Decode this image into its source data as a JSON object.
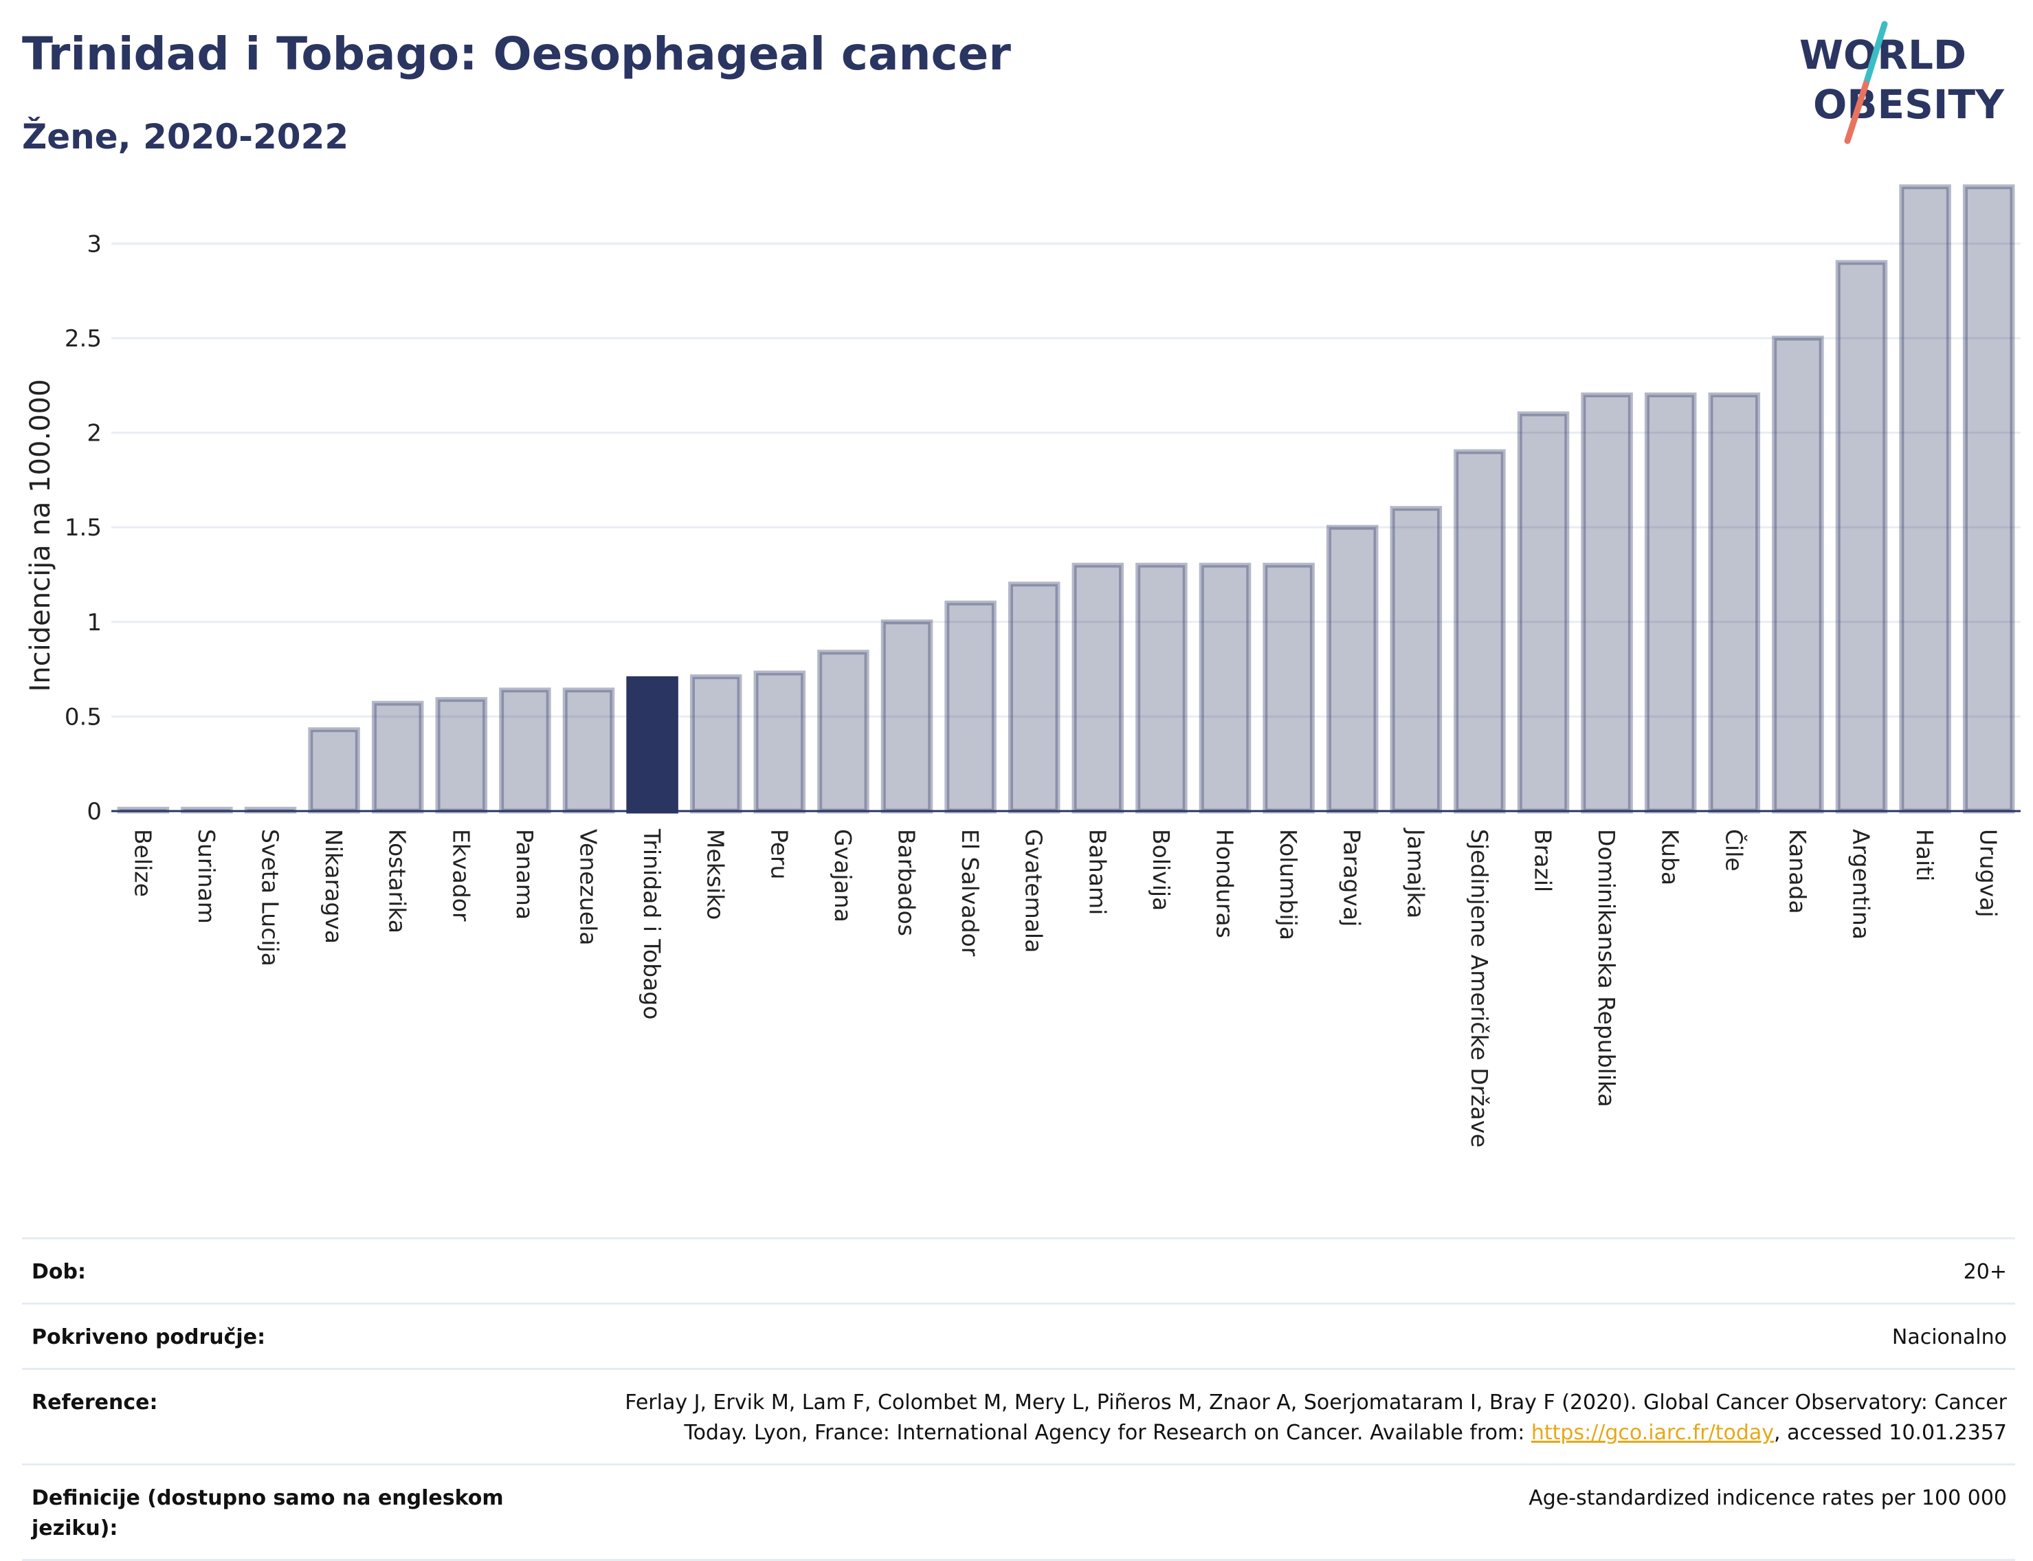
{
  "header": {
    "title": "Trinidad i Tobago: Oesophageal cancer",
    "subtitle": "Žene, 2020-2022"
  },
  "logo": {
    "line1": "WORLD",
    "line2": "OBESITY",
    "icon": "world-obesity-logo",
    "colors": {
      "text": "#2b3561",
      "slash_top": "#3bbdc4",
      "slash_bottom": "#e8735f"
    }
  },
  "chart_data": {
    "type": "bar",
    "ylabel": "Incidencija na 100.000",
    "ylim": [
      0,
      3.35
    ],
    "yticks": [
      0,
      0.5,
      1,
      1.5,
      2,
      2.5,
      3
    ],
    "ytick_labels": [
      "0",
      "0.5",
      "1",
      "1.5",
      "2",
      "2.5",
      "3"
    ],
    "grid": true,
    "highlight": "Trinidad i Tobago",
    "colors": {
      "bar": "#2b3561",
      "highlight": "#2b3561",
      "grid": "#e9edf3",
      "axis": "#2b3561"
    },
    "categories": [
      "Belize",
      "Surinam",
      "Sveta Lucija",
      "Nikaragva",
      "Kostarika",
      "Ekvador",
      "Panama",
      "Venezuela",
      "Trinidad i Tobago",
      "Meksiko",
      "Peru",
      "Gvajana",
      "Barbados",
      "El Salvador",
      "Gvatemala",
      "Bahami",
      "Bolivija",
      "Honduras",
      "Kolumbija",
      "Paragvaj",
      "Jamajka",
      "Sjedinjene Američke Države",
      "Brazil",
      "Dominikanska Republika",
      "Kuba",
      "Čile",
      "Kanada",
      "Argentina",
      "Haiti",
      "Urugvaj"
    ],
    "values": [
      0.01,
      0.01,
      0.01,
      0.43,
      0.57,
      0.59,
      0.64,
      0.64,
      0.7,
      0.71,
      0.73,
      0.84,
      1.0,
      1.1,
      1.2,
      1.3,
      1.3,
      1.3,
      1.3,
      1.5,
      1.6,
      1.9,
      2.1,
      2.2,
      2.2,
      2.2,
      2.5,
      2.9,
      3.3,
      3.3
    ]
  },
  "info": {
    "rows": [
      {
        "label": "Dob:",
        "value": "20+"
      },
      {
        "label": "Pokriveno područje:",
        "value": "Nacionalno"
      },
      {
        "label": "Reference:",
        "value_line1": "Ferlay J, Ervik M, Lam F, Colombet M, Mery L, Piñeros M, Znaor A, Soerjomataram I, Bray F (2020). Global Cancer Observatory: Cancer",
        "value_line2_pre": "Today. Lyon, France: International Agency for Research on Cancer. Available from: ",
        "link": "https://gco.iarc.fr/today",
        "value_line2_post": ", accessed 10.01.2357"
      },
      {
        "label": "Definicije (dostupno samo na engleskom jeziku):",
        "value": "Age-standardized indicence rates per 100 000"
      }
    ]
  }
}
